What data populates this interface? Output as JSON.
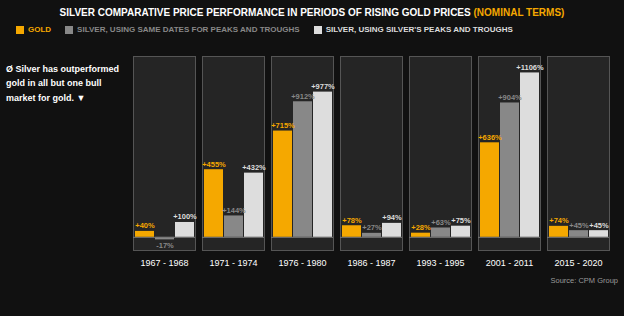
{
  "chart_data": {
    "type": "bar",
    "title": "SILVER COMPARATIVE PRICE PERFORMANCE IN PERIODS OF RISING GOLD PRICES",
    "subtitle": "(NOMINAL TERMS)",
    "annotations": [
      "Ø Silver has outperformed",
      "gold in all but one bull",
      "market for gold. ▼"
    ],
    "source": "Source: CPM Group",
    "categories": [
      "1967 - 1968",
      "1971 - 1974",
      "1976 - 1980",
      "1986 - 1987",
      "1993 - 1995",
      "2001 - 2011",
      "2015 - 2020"
    ],
    "series": [
      {
        "name": "GOLD",
        "color": "#F5A800",
        "values": [
          40,
          455,
          715,
          78,
          28,
          636,
          74
        ],
        "value_labels": [
          "+40%",
          "+455%",
          "+715%",
          "+78%",
          "+28%",
          "+636%",
          "+74%"
        ]
      },
      {
        "name": "SILVER, USING SAME DATES FOR PEAKS AND TROUGHS",
        "color": "#888888",
        "values": [
          -17,
          144,
          912,
          27,
          63,
          904,
          45
        ],
        "value_labels": [
          "-17%",
          "+144%",
          "+912%",
          "+27%",
          "+63%",
          "+904%",
          "+45%"
        ]
      },
      {
        "name": "SILVER, USING SILVER'S PEAKS AND TROUGHS",
        "color": "#dddddd",
        "values": [
          100,
          432,
          977,
          94,
          75,
          1106,
          45
        ],
        "value_labels": [
          "+100%",
          "+432%",
          "+977%",
          "+94%",
          "+75%",
          "+1106%",
          "+45%"
        ]
      }
    ],
    "ylim": [
      -88.48,
      1216.6
    ],
    "tick_labels": "x",
    "grid": false,
    "legend": "upper left",
    "data_labels": true
  }
}
